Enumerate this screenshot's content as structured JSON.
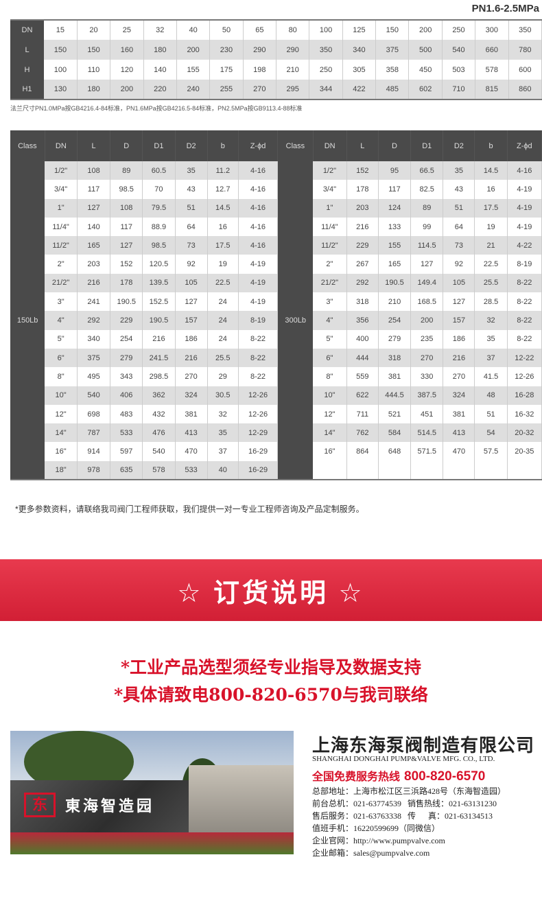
{
  "pressure_label": "PN1.6-2.5MPa",
  "table1": {
    "rows": [
      {
        "label": "DN",
        "values": [
          "15",
          "20",
          "25",
          "32",
          "40",
          "50",
          "65",
          "80",
          "100",
          "125",
          "150",
          "200",
          "250",
          "300",
          "350"
        ]
      },
      {
        "label": "L",
        "values": [
          "150",
          "150",
          "160",
          "180",
          "200",
          "230",
          "290",
          "290",
          "350",
          "340",
          "375",
          "500",
          "540",
          "660",
          "780"
        ]
      },
      {
        "label": "H",
        "values": [
          "100",
          "110",
          "120",
          "140",
          "155",
          "175",
          "198",
          "210",
          "250",
          "305",
          "358",
          "450",
          "503",
          "578",
          "600"
        ]
      },
      {
        "label": "H1",
        "values": [
          "130",
          "180",
          "200",
          "220",
          "240",
          "255",
          "270",
          "295",
          "344",
          "422",
          "485",
          "602",
          "710",
          "815",
          "860"
        ]
      }
    ]
  },
  "flange_note": "法兰尺寸PN1.0MPa按GB4216.4-84标准，PN1.6MPa按GB4216.5-84标准，PN2.5MPa按GB9113.4-88标准",
  "table2": {
    "headers": [
      "Class",
      "DN",
      "L",
      "D",
      "D1",
      "D2",
      "b",
      "Z-ϕd",
      "Class",
      "DN",
      "L",
      "D",
      "D1",
      "D2",
      "b",
      "Z-ϕd"
    ],
    "class_left": "150Lb",
    "class_right": "300Lb",
    "left_rows": [
      [
        "1/2\"",
        "108",
        "89",
        "60.5",
        "35",
        "11.2",
        "4-16"
      ],
      [
        "3/4\"",
        "117",
        "98.5",
        "70",
        "43",
        "12.7",
        "4-16"
      ],
      [
        "1\"",
        "127",
        "108",
        "79.5",
        "51",
        "14.5",
        "4-16"
      ],
      [
        "11/4\"",
        "140",
        "117",
        "88.9",
        "64",
        "16",
        "4-16"
      ],
      [
        "11/2\"",
        "165",
        "127",
        "98.5",
        "73",
        "17.5",
        "4-16"
      ],
      [
        "2\"",
        "203",
        "152",
        "120.5",
        "92",
        "19",
        "4-19"
      ],
      [
        "21/2\"",
        "216",
        "178",
        "139.5",
        "105",
        "22.5",
        "4-19"
      ],
      [
        "3\"",
        "241",
        "190.5",
        "152.5",
        "127",
        "24",
        "4-19"
      ],
      [
        "4\"",
        "292",
        "229",
        "190.5",
        "157",
        "24",
        "8-19"
      ],
      [
        "5\"",
        "340",
        "254",
        "216",
        "186",
        "24",
        "8-22"
      ],
      [
        "6\"",
        "375",
        "279",
        "241.5",
        "216",
        "25.5",
        "8-22"
      ],
      [
        "8\"",
        "495",
        "343",
        "298.5",
        "270",
        "29",
        "8-22"
      ],
      [
        "10\"",
        "540",
        "406",
        "362",
        "324",
        "30.5",
        "12-26"
      ],
      [
        "12\"",
        "698",
        "483",
        "432",
        "381",
        "32",
        "12-26"
      ],
      [
        "14\"",
        "787",
        "533",
        "476",
        "413",
        "35",
        "12-29"
      ],
      [
        "16\"",
        "914",
        "597",
        "540",
        "470",
        "37",
        "16-29"
      ],
      [
        "18\"",
        "978",
        "635",
        "578",
        "533",
        "40",
        "16-29"
      ]
    ],
    "right_rows": [
      [
        "1/2\"",
        "152",
        "95",
        "66.5",
        "35",
        "14.5",
        "4-16"
      ],
      [
        "3/4\"",
        "178",
        "117",
        "82.5",
        "43",
        "16",
        "4-19"
      ],
      [
        "1\"",
        "203",
        "124",
        "89",
        "51",
        "17.5",
        "4-19"
      ],
      [
        "11/4\"",
        "216",
        "133",
        "99",
        "64",
        "19",
        "4-19"
      ],
      [
        "11/2\"",
        "229",
        "155",
        "114.5",
        "73",
        "21",
        "4-22"
      ],
      [
        "2\"",
        "267",
        "165",
        "127",
        "92",
        "22.5",
        "8-19"
      ],
      [
        "21/2\"",
        "292",
        "190.5",
        "149.4",
        "105",
        "25.5",
        "8-22"
      ],
      [
        "3\"",
        "318",
        "210",
        "168.5",
        "127",
        "28.5",
        "8-22"
      ],
      [
        "4\"",
        "356",
        "254",
        "200",
        "157",
        "32",
        "8-22"
      ],
      [
        "5\"",
        "400",
        "279",
        "235",
        "186",
        "35",
        "8-22"
      ],
      [
        "6\"",
        "444",
        "318",
        "270",
        "216",
        "37",
        "12-22"
      ],
      [
        "8\"",
        "559",
        "381",
        "330",
        "270",
        "41.5",
        "12-26"
      ],
      [
        "10\"",
        "622",
        "444.5",
        "387.5",
        "324",
        "48",
        "16-28"
      ],
      [
        "12\"",
        "711",
        "521",
        "451",
        "381",
        "51",
        "16-32"
      ],
      [
        "14\"",
        "762",
        "584",
        "514.5",
        "413",
        "54",
        "20-32"
      ],
      [
        "16\"",
        "864",
        "648",
        "571.5",
        "470",
        "57.5",
        "20-35"
      ]
    ]
  },
  "more_info_note": "*更多参数资料，请联络我司阀门工程师获取，我们提供一对一专业工程师咨询及产品定制服务。",
  "banner_title": "☆ 订货说明 ☆",
  "order_lines": [
    "*工业产品选型须经专业指导及数据支持",
    "*具体请致电800-820-6570与我司联络"
  ],
  "photo": {
    "sign_text": "東海智造园",
    "logo_text": "东"
  },
  "company": {
    "name_cn": "上海东海泵阀制造有限公司",
    "name_en": "SHANGHAI DONGHAI PUMP&VALVE MFG. CO., LTD.",
    "hotline_label": "全国免费服务热线",
    "hotline": "800-820-6570",
    "info": [
      "总部地址：上海市松江区三浜路428号（东海智造园）",
      "前台总机：021-63774539   销售热线：021-63131230",
      "售后服务：021-63763338   传      真：021-63134513",
      "值班手机：16220599699（同微信）",
      "企业官网：http://www.pumpvalve.com",
      "企业邮箱：sales@pumpvalve.com"
    ]
  },
  "colors": {
    "accent_red": "#d8122a",
    "header_dark": "#4a4a4a",
    "row_alt": "#dedede"
  }
}
